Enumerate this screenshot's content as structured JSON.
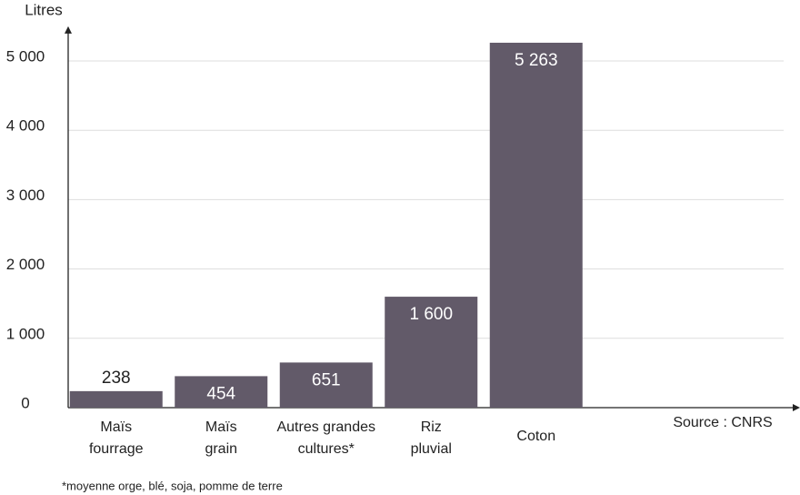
{
  "chart_data": {
    "type": "bar",
    "y_label": "Litres",
    "categories": [
      [
        "Maïs",
        "fourrage"
      ],
      [
        "Maïs",
        "grain"
      ],
      [
        "Autres grandes",
        "cultures*"
      ],
      [
        "Riz",
        "pluvial"
      ],
      [
        "Coton"
      ]
    ],
    "values": [
      238,
      454,
      651,
      1600,
      5263
    ],
    "value_labels": [
      "238",
      "454",
      "651",
      "1 600",
      "5 263"
    ],
    "color": "#625a69",
    "ylim": [
      0,
      5500
    ],
    "yticks": [
      0,
      {
        "value": 1000,
        "label": "1 000"
      },
      {
        "value": 2000,
        "label": "2 000"
      },
      {
        "value": 3000,
        "label": "3 000"
      },
      {
        "value": 4000,
        "label": "4 000"
      },
      {
        "value": 5000,
        "label": "5 000"
      }
    ],
    "grid": true,
    "source": "Source : CNRS",
    "footnote": "*moyenne orge, blé, soja, pomme de terre"
  }
}
